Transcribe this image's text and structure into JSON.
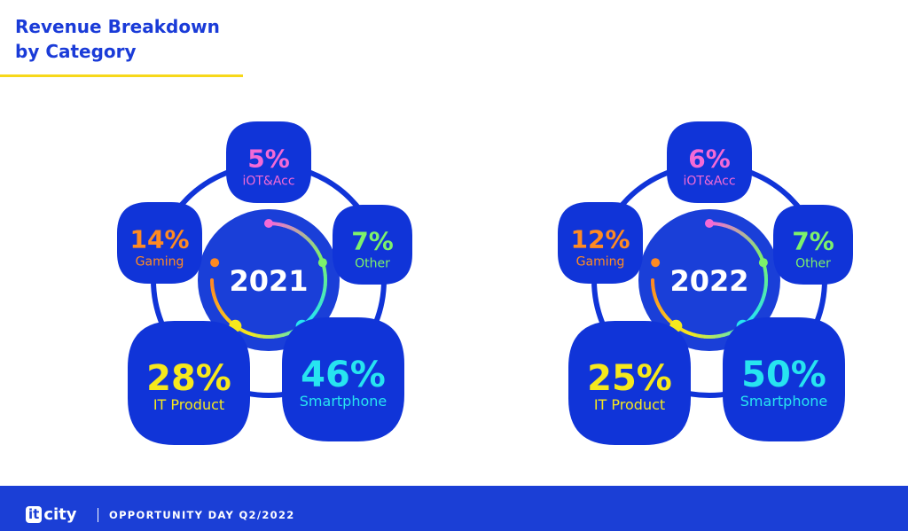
{
  "header": {
    "title_line1": "Revenue Breakdown",
    "title_line2": "by Category"
  },
  "colors": {
    "blob": "#1034d8",
    "center": "#1a3fd8",
    "text_white": "#ffffff"
  },
  "chart_data": [
    {
      "type": "pie",
      "title": "2021",
      "segments": [
        {
          "label": "iOT&Acc",
          "value": 5,
          "value_label": "5%",
          "color": "#f46ad6"
        },
        {
          "label": "Other",
          "value": 7,
          "value_label": "7%",
          "color": "#7df16b"
        },
        {
          "label": "Smartphone",
          "value": 46,
          "value_label": "46%",
          "color": "#27e4f0"
        },
        {
          "label": "IT Product",
          "value": 28,
          "value_label": "28%",
          "color": "#f6e81c"
        },
        {
          "label": "Gaming",
          "value": 14,
          "value_label": "14%",
          "color": "#ff8a22"
        }
      ]
    },
    {
      "type": "pie",
      "title": "2022",
      "segments": [
        {
          "label": "iOT&Acc",
          "value": 6,
          "value_label": "6%",
          "color": "#f46ad6"
        },
        {
          "label": "Other",
          "value": 7,
          "value_label": "7%",
          "color": "#7df16b"
        },
        {
          "label": "Smartphone",
          "value": 50,
          "value_label": "50%",
          "color": "#27e4f0"
        },
        {
          "label": "IT Product",
          "value": 25,
          "value_label": "25%",
          "color": "#f6e81c"
        },
        {
          "label": "Gaming",
          "value": 12,
          "value_label": "12%",
          "color": "#ff8a22"
        }
      ]
    }
  ],
  "footer": {
    "logo_it": "it",
    "logo_city": "city",
    "text": "OPPORTUNITY DAY Q2/2022"
  }
}
